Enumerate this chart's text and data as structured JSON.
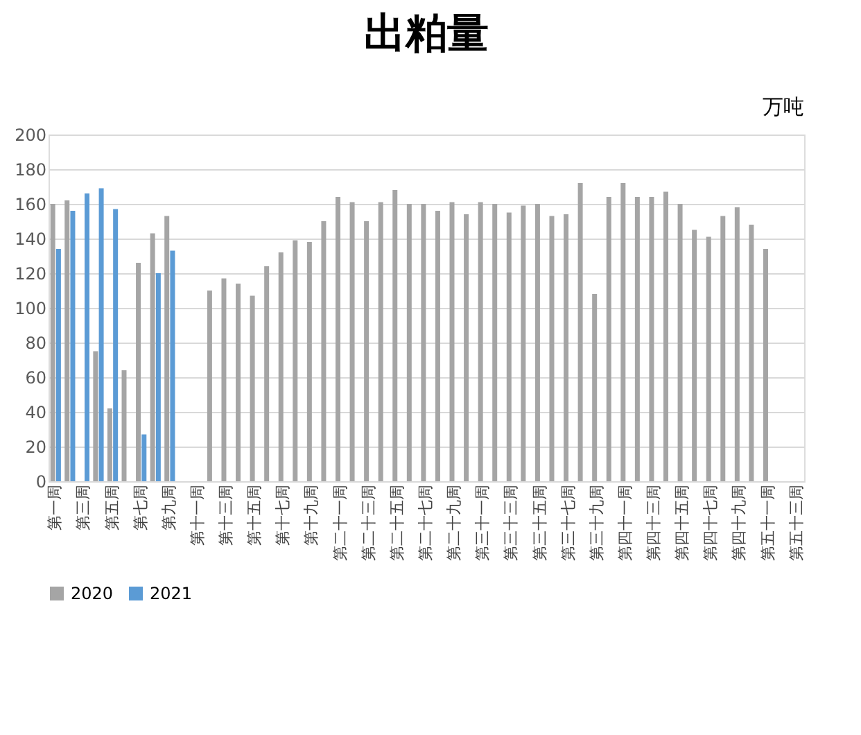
{
  "chart_data": {
    "type": "bar",
    "title": "出粕量",
    "annotations": [
      "万吨"
    ],
    "categories": [
      "第一周",
      null,
      "第三周",
      null,
      "第五周",
      null,
      "第七周",
      null,
      "第九周",
      null,
      "第十一周",
      null,
      "第十三周",
      null,
      "第十五周",
      null,
      "第十七周",
      null,
      "第十九周",
      null,
      "第二十一周",
      null,
      "第二十三周",
      null,
      "第二十五周",
      null,
      "第二十七周",
      null,
      "第二十九周",
      null,
      "第三十一周",
      null,
      "第三十三周",
      null,
      "第三十五周",
      null,
      "第三十七周",
      null,
      "第三十九周",
      null,
      "第四十一周",
      null,
      "第四十三周",
      null,
      "第四十五周",
      null,
      "第四十七周",
      null,
      "第四十九周",
      null,
      "第五十一周",
      null,
      "第五十三周"
    ],
    "series": [
      {
        "name": "2020",
        "color": "#a5a5a5",
        "values": [
          160,
          162,
          null,
          75,
          42,
          64,
          126,
          143,
          153,
          null,
          null,
          110,
          117,
          114,
          107,
          124,
          132,
          139,
          138,
          150,
          164,
          161,
          150,
          161,
          168,
          160,
          160,
          156,
          161,
          154,
          161,
          160,
          155,
          159,
          160,
          153,
          154,
          172,
          108,
          164,
          172,
          164,
          164,
          167,
          160,
          145,
          141,
          153,
          158,
          148,
          134,
          null,
          null
        ]
      },
      {
        "name": "2021",
        "color": "#5b9bd5",
        "values": [
          134,
          156,
          166,
          169,
          157,
          null,
          27,
          120,
          133,
          null,
          null,
          null,
          null,
          null,
          null,
          null,
          null,
          null,
          null,
          null,
          null,
          null,
          null,
          null,
          null,
          null,
          null,
          null,
          null,
          null,
          null,
          null,
          null,
          null,
          null,
          null,
          null,
          null,
          null,
          null,
          null,
          null,
          null,
          null,
          null,
          null,
          null,
          null,
          null,
          null,
          null,
          null,
          null
        ]
      }
    ],
    "ylim": [
      0,
      200
    ],
    "yticks": [
      0,
      20,
      40,
      60,
      80,
      100,
      120,
      140,
      160,
      180,
      200
    ],
    "grid": "y",
    "legend": "bottom"
  }
}
